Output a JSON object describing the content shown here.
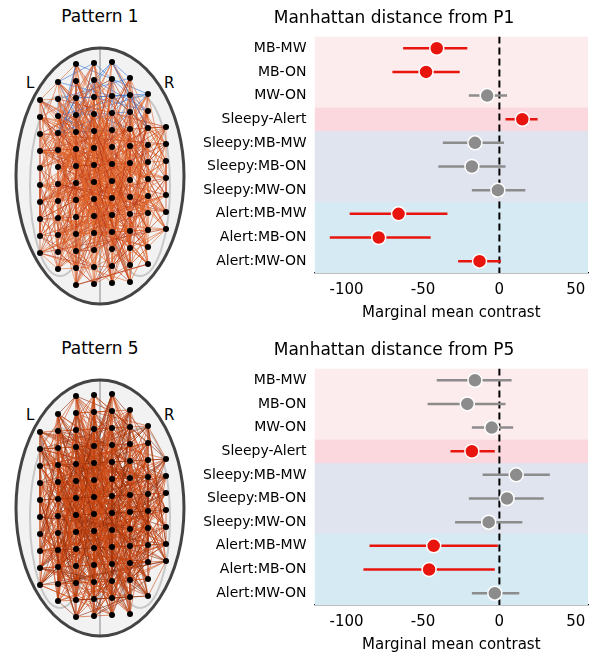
{
  "brains": [
    {
      "title": "Pattern 1",
      "left_label": "L",
      "right_label": "R"
    },
    {
      "title": "Pattern 5",
      "left_label": "L",
      "right_label": "R"
    }
  ],
  "chart_data": [
    {
      "type": "dot",
      "orientation": "horizontal",
      "title": "Manhattan distance from P1",
      "x_label": "Marginal mean contrast",
      "categories": [
        "MB-MW",
        "MB-ON",
        "MW-ON",
        "Sleepy-Alert",
        "Sleepy:MB-MW",
        "Sleepy:MB-ON",
        "Sleepy:MW-ON",
        "Alert:MB-MW",
        "Alert:MB-ON",
        "Alert:MW-ON"
      ],
      "values": [
        -41,
        -48,
        -8,
        15,
        -16,
        -18,
        -1,
        -66,
        -79,
        -13
      ],
      "ci_low": [
        -63,
        -70,
        -20,
        4,
        -37,
        -40,
        -18,
        -98,
        -111,
        -27
      ],
      "ci_high": [
        -21,
        -26,
        5,
        25,
        3,
        4,
        17,
        -34,
        -45,
        1
      ],
      "colors": [
        "#e8150f",
        "#e8150f",
        "#8c8c8c",
        "#e8150f",
        "#8c8c8c",
        "#8c8c8c",
        "#8c8c8c",
        "#e8150f",
        "#e8150f",
        "#e8150f"
      ],
      "xlim": [
        -121,
        58
      ],
      "xticks": [
        -100,
        -50,
        0,
        50
      ],
      "reference_x": 0,
      "grid": false
    },
    {
      "type": "dot",
      "orientation": "horizontal",
      "title": "Manhattan distance from P5",
      "x_label": "Marginal mean contrast",
      "categories": [
        "MB-MW",
        "MB-ON",
        "MW-ON",
        "Sleepy-Alert",
        "Sleepy:MB-MW",
        "Sleepy:MB-ON",
        "Sleepy:MW-ON",
        "Alert:MB-MW",
        "Alert:MB-ON",
        "Alert:MW-ON"
      ],
      "values": [
        -16,
        -21,
        -5,
        -18,
        11,
        5,
        -7,
        -43,
        -46,
        -3
      ],
      "ci_low": [
        -41,
        -47,
        -18,
        -32,
        -11,
        -20,
        -29,
        -85,
        -89,
        -18
      ],
      "ci_high": [
        8,
        4,
        9,
        -3,
        33,
        29,
        15,
        -1,
        -3,
        13
      ],
      "colors": [
        "#8c8c8c",
        "#8c8c8c",
        "#8c8c8c",
        "#e8150f",
        "#8c8c8c",
        "#8c8c8c",
        "#8c8c8c",
        "#e8150f",
        "#e8150f",
        "#8c8c8c"
      ],
      "xlim": [
        -121,
        58
      ],
      "xticks": [
        -100,
        -50,
        0,
        50
      ],
      "reference_x": 0,
      "grid": false
    }
  ]
}
